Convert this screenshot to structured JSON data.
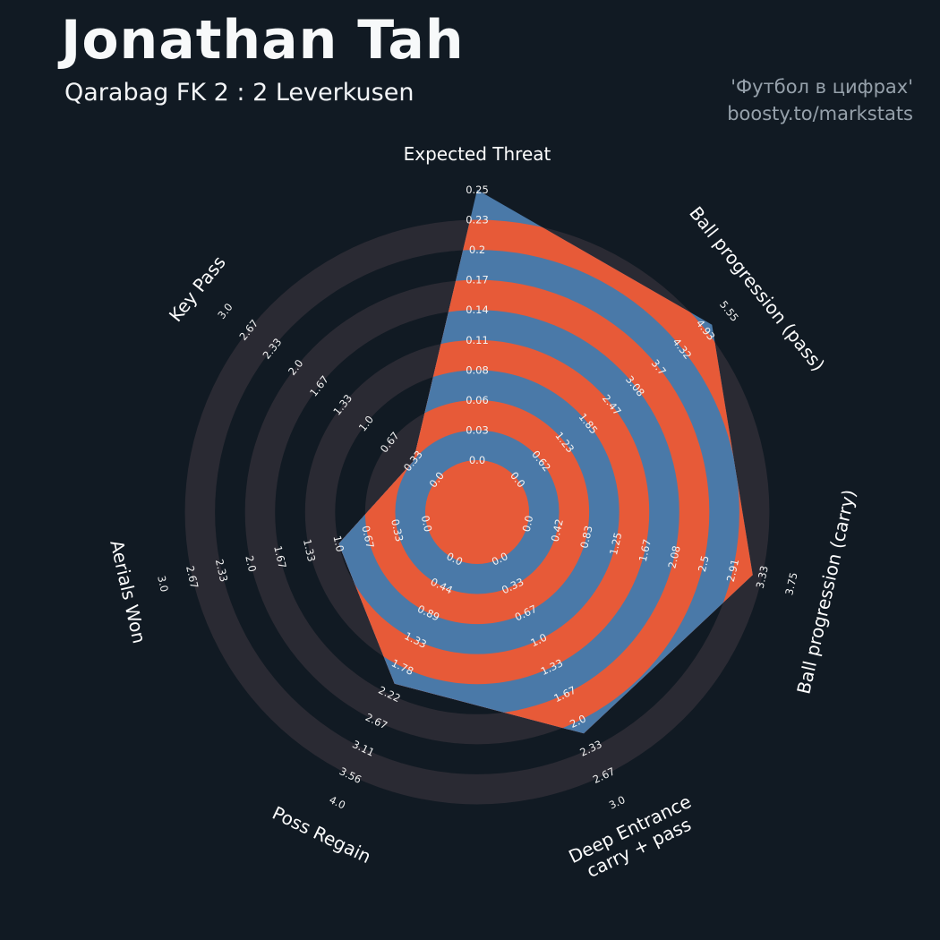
{
  "header": {
    "title": "Jonathan Tah",
    "subtitle": "Qarabag FK 2 : 2 Leverkusen",
    "watermark_line1": "'Футбол в цифрах'",
    "watermark_line2": "boosty.to/markstats"
  },
  "chart_data": {
    "type": "radar",
    "title": "Jonathan Tah",
    "subtitle": "Qarabag FK 2 : 2 Leverkusen",
    "grid": "concentric-rings",
    "legend_position": "none",
    "params": [
      {
        "label": "Expected Threat",
        "value": 0.25,
        "range": [
          0,
          0.25
        ],
        "tick_labels": [
          "0.0",
          "0.03",
          "0.06",
          "0.08",
          "0.11",
          "0.14",
          "0.17",
          "0.2",
          "0.23",
          "0.25"
        ]
      },
      {
        "label": "Ball progression (pass)",
        "value": 5.1,
        "range": [
          0,
          5.55
        ],
        "tick_labels": [
          "0.0",
          "0.62",
          "1.23",
          "1.85",
          "2.47",
          "3.08",
          "3.7",
          "4.32",
          "4.93",
          "5.55"
        ]
      },
      {
        "label": "Ball progression (carry)",
        "value": 3.2,
        "range": [
          0,
          3.75
        ],
        "tick_labels": [
          "0.0",
          "0.42",
          "0.83",
          "1.25",
          "1.67",
          "2.08",
          "2.5",
          "2.91",
          "3.33",
          "3.75"
        ]
      },
      {
        "label": "Deep Entrance\ncarry + pass",
        "value": 2.15,
        "range": [
          0,
          3.0
        ],
        "tick_labels": [
          "0.0",
          "0.33",
          "0.67",
          "1.0",
          "1.33",
          "1.67",
          "2.0",
          "2.33",
          "2.67",
          "3.0"
        ]
      },
      {
        "label": "Poss Regain",
        "value": 2.05,
        "range": [
          0,
          4.0
        ],
        "tick_labels": [
          "0.0",
          "0.44",
          "0.89",
          "1.33",
          "1.78",
          "2.22",
          "2.67",
          "3.11",
          "3.56",
          "4.0"
        ]
      },
      {
        "label": "Aerials Won",
        "value": 1.0,
        "range": [
          0,
          3.0
        ],
        "tick_labels": [
          "0.0",
          "0.33",
          "0.67",
          "1.0",
          "1.33",
          "1.67",
          "2.0",
          "2.33",
          "2.67",
          "3.0"
        ]
      },
      {
        "label": "Key Pass",
        "value": 0.33,
        "range": [
          0,
          3.0
        ],
        "tick_labels": [
          "0.0",
          "0.33",
          "0.67",
          "1.0",
          "1.33",
          "1.67",
          "2.0",
          "2.33",
          "2.67",
          "3.0"
        ]
      }
    ],
    "colors": {
      "background": "#111a23",
      "ring": "#2a2a33",
      "blue": "#4a79a8",
      "orange": "#e75a38",
      "tick_text": "#f2f2f2",
      "axis_text": "#fdfdfd"
    }
  }
}
